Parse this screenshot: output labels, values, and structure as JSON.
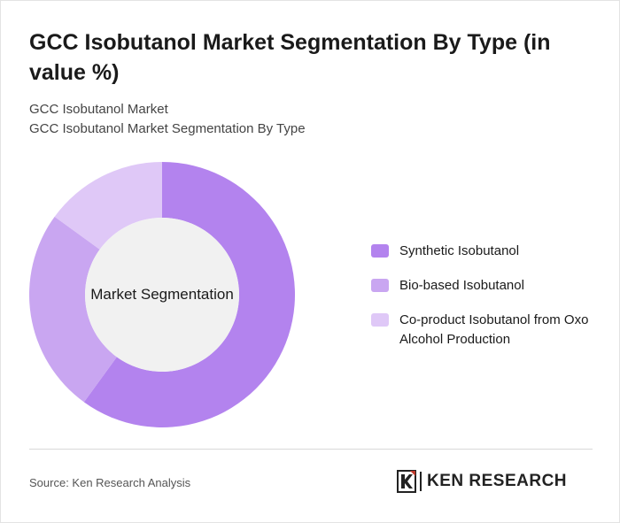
{
  "title": "GCC Isobutanol Market Segmentation By Type (in value %)",
  "breadcrumb": [
    "GCC Isobutanol Market",
    "GCC Isobutanol Market Segmentation By Type"
  ],
  "source": "Source: Ken Research Analysis",
  "brand": {
    "name": "KEN RESEARCH",
    "logo_text": "K"
  },
  "colors": {
    "synthetic": "#b383ee",
    "bio_based": "#c9a6f1",
    "co_product": "#dfc8f7",
    "center": "#f1f1f1"
  },
  "chart_data": {
    "type": "pie",
    "center_label": "Market Segmentation",
    "categories": [
      "Synthetic Isobutanol",
      "Bio-based Isobutanol",
      "Co-product Isobutanol from Oxo Alcohol Production"
    ],
    "values": [
      60,
      25,
      15
    ],
    "legend_position": "right",
    "donut": true
  }
}
